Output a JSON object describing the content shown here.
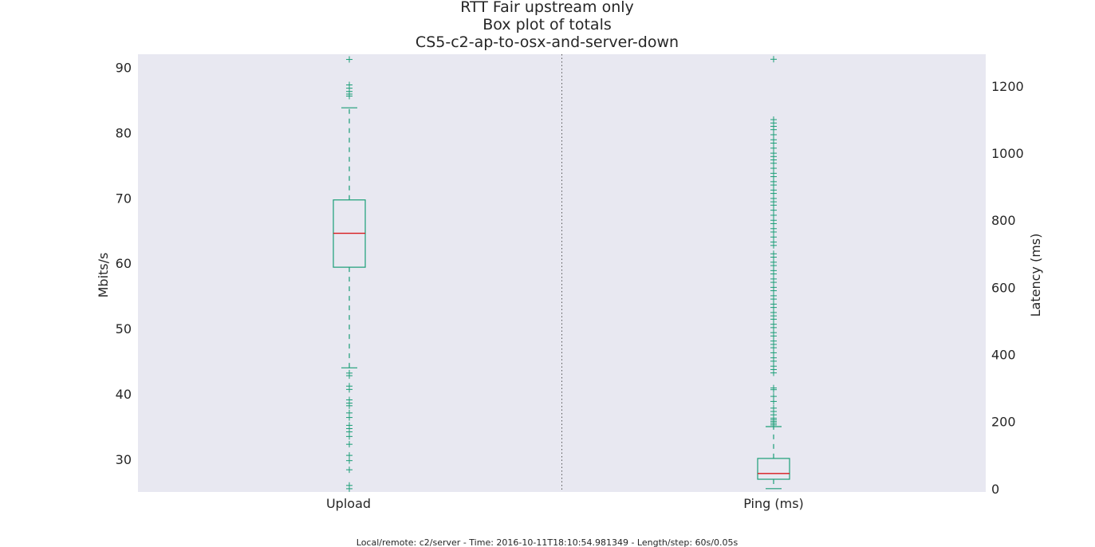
{
  "chart_data": {
    "type": "box",
    "title_lines": [
      "RTT Fair upstream only",
      "Box plot of totals",
      "CS5-c2-ap-to-osx-and-server-down"
    ],
    "categories": [
      "Upload",
      "Ping (ms)"
    ],
    "left_axis": {
      "label": "Mbits/s",
      "ylim": [
        25.0,
        92.0
      ],
      "ticks": [
        30,
        40,
        50,
        60,
        70,
        80,
        90
      ]
    },
    "right_axis": {
      "label": "Latency (ms)",
      "ylim": [
        -10,
        1295
      ],
      "ticks": [
        0,
        200,
        400,
        600,
        800,
        1000,
        1200
      ]
    },
    "grid": false,
    "series": [
      {
        "name": "Upload",
        "axis": "left",
        "whisker_low": 44.0,
        "q1": 59.4,
        "median": 64.6,
        "q3": 69.7,
        "whisker_high": 83.8,
        "outliers": [
          91.2,
          87.3,
          86.8,
          86.3,
          85.9,
          85.6,
          43.2,
          42.8,
          41.2,
          40.7,
          39.1,
          38.6,
          38.2,
          37.1,
          36.4,
          35.2,
          34.7,
          34.2,
          33.5,
          32.3,
          30.6,
          29.8,
          28.4,
          26.0,
          25.5
        ]
      },
      {
        "name": "Ping (ms)",
        "axis": "right",
        "whisker_low": 0,
        "q1": 28,
        "median": 45,
        "q3": 90,
        "whisker_high": 185,
        "outliers": [
          1280,
          1100,
          1090,
          1080,
          1070,
          1055,
          1040,
          1030,
          1015,
          1000,
          990,
          980,
          970,
          955,
          940,
          930,
          915,
          905,
          890,
          880,
          865,
          855,
          845,
          830,
          815,
          800,
          790,
          775,
          765,
          750,
          735,
          725,
          700,
          690,
          675,
          665,
          650,
          640,
          625,
          615,
          600,
          590,
          575,
          565,
          550,
          540,
          525,
          515,
          505,
          490,
          480,
          465,
          455,
          440,
          430,
          420,
          405,
          390,
          380,
          365,
          355,
          345,
          300,
          295,
          275,
          260,
          240,
          230,
          220,
          210,
          205,
          200,
          195,
          190
        ]
      }
    ],
    "footer": "Local/remote: c2/server - Time: 2016-10-11T18:10:54.981349 - Length/step: 60s/0.05s",
    "colors": {
      "box": "#1b9e77",
      "median": "#d7191c",
      "plot_background": "#e8e8f1",
      "divider": "#555555"
    }
  }
}
